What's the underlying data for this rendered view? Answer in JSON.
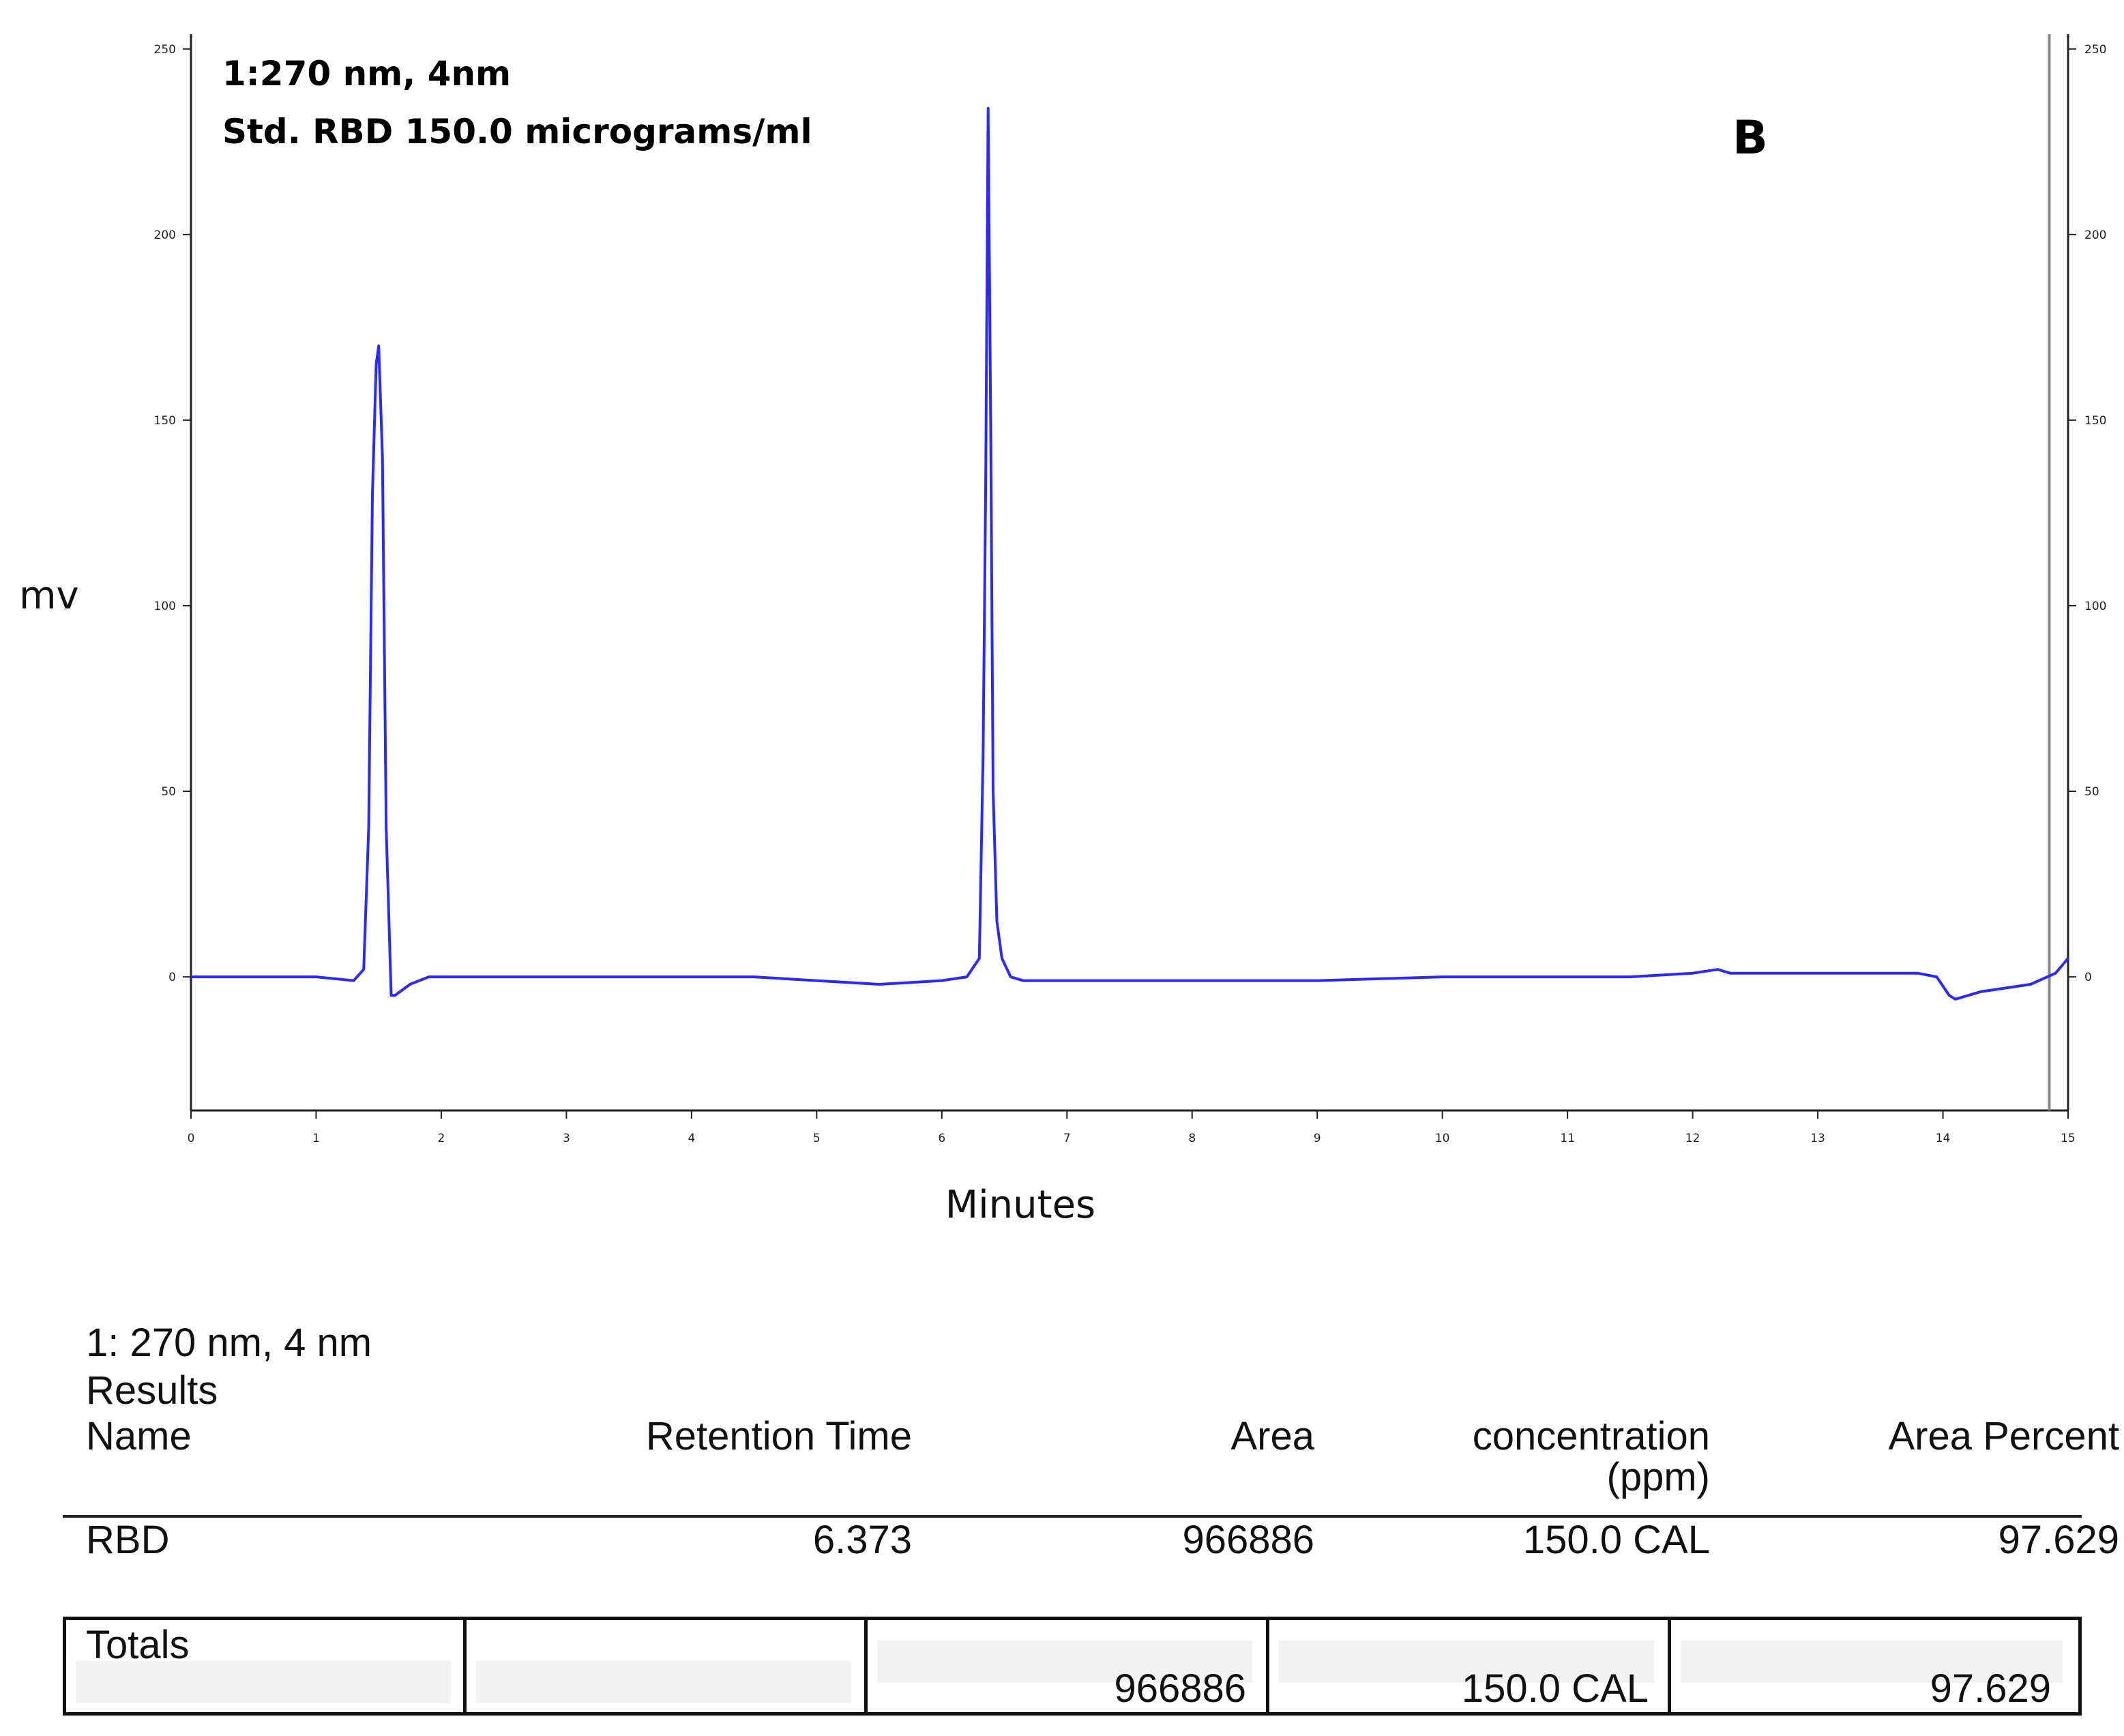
{
  "chart_data": {
    "type": "line",
    "annotation_lines": [
      "1:270 nm, 4nm",
      "Std. RBD 150.0 micrograms/ml"
    ],
    "panel_label": "B",
    "xlabel": "Minutes",
    "ylabel": "mv",
    "xlim": [
      0,
      15
    ],
    "ylim": [
      -36,
      254
    ],
    "x_ticks": [
      0,
      1,
      2,
      3,
      4,
      5,
      6,
      7,
      8,
      9,
      10,
      11,
      12,
      13,
      14,
      15
    ],
    "x_tick_labels": [
      "0",
      "1",
      "2",
      "3",
      "4",
      "5",
      "6",
      "7",
      "8",
      "9",
      "10",
      "11",
      "12",
      "13",
      "14",
      "15"
    ],
    "y_ticks": [
      0,
      50,
      100,
      150,
      200,
      250
    ],
    "y_tick_labels": [
      "0",
      "50",
      "100",
      "150",
      "200",
      "250"
    ],
    "grid": false,
    "line_color": "#2a2aff",
    "marker_line_x": 14.85,
    "series": [
      {
        "x": [
          0,
          0.5,
          1.0,
          1.3,
          1.38,
          1.42,
          1.45,
          1.48,
          1.5,
          1.53,
          1.56,
          1.6,
          1.63,
          1.67,
          1.75,
          1.9,
          2.2,
          3.0,
          4.0,
          4.5,
          5.0,
          5.5,
          6.0,
          6.2,
          6.3,
          6.33,
          6.35,
          6.37,
          6.39,
          6.41,
          6.44,
          6.48,
          6.55,
          6.65,
          6.8,
          7.0,
          8.0,
          9.0,
          10.0,
          11.0,
          11.5,
          12.0,
          12.2,
          12.3,
          12.5,
          13.0,
          13.5,
          13.8,
          13.95,
          14.05,
          14.1,
          14.3,
          14.7,
          14.9,
          15.0
        ],
        "y": [
          0,
          0,
          0,
          -1,
          2,
          40,
          130,
          165,
          170,
          140,
          40,
          -5,
          -5,
          -4,
          -2,
          0,
          0,
          0,
          0,
          0,
          -1,
          -2,
          -1,
          0,
          5,
          60,
          130,
          234,
          150,
          50,
          15,
          5,
          0,
          -1,
          -1,
          -1,
          -1,
          -1,
          0,
          0,
          0,
          1,
          2,
          1,
          1,
          1,
          1,
          1,
          0,
          -5,
          -6,
          -4,
          -2,
          1,
          5
        ]
      }
    ]
  },
  "results": {
    "header": "1: 270 nm, 4 nm",
    "subheader": "Results",
    "columns": [
      "Name",
      "Retention Time",
      "Area",
      "concentration",
      "Area Percent"
    ],
    "unit": "(ppm)",
    "rows": [
      {
        "name": "RBD",
        "retention_time": "6.373",
        "area": "966886",
        "concentration": "150.0 CAL",
        "area_percent": "97.629"
      }
    ],
    "totals": {
      "label": "Totals",
      "area": "966886",
      "concentration": "150.0 CAL",
      "area_percent": "97.629"
    }
  }
}
